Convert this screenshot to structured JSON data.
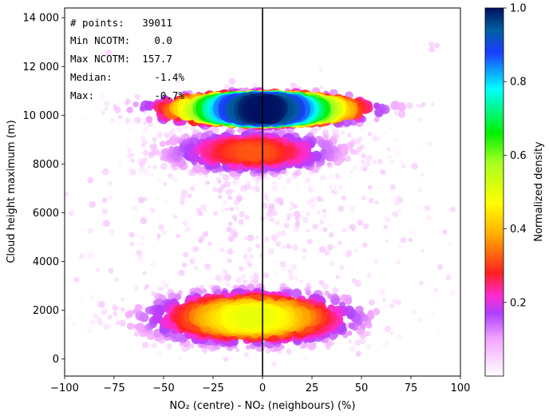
{
  "chart_data": {
    "type": "scatter",
    "style": "density-colored scatter (bubble size and color scale with normalized density)",
    "xlabel": "NO₂ (centre) - NO₂ (neighbours) (%)",
    "ylabel": "Cloud height maximum (m)",
    "xlim": [
      -100,
      100
    ],
    "ylim": [
      -700,
      14400
    ],
    "x_ticks": [
      -100,
      -75,
      -50,
      -25,
      0,
      25,
      50,
      75,
      100
    ],
    "x_tick_labels": [
      "−100",
      "−75",
      "−50",
      "−25",
      "0",
      "25",
      "50",
      "75",
      "100"
    ],
    "y_ticks": [
      0,
      2000,
      4000,
      6000,
      8000,
      10000,
      12000,
      14000
    ],
    "y_tick_labels": [
      "0",
      "2000",
      "4000",
      "6000",
      "8000",
      "10 000",
      "12 000",
      "14 000"
    ],
    "grid": false,
    "reference_line": {
      "x": 0,
      "color": "#000000"
    },
    "colorbar": {
      "label": "Normalized density",
      "range": [
        0,
        1.0
      ],
      "ticks": [
        0.2,
        0.4,
        0.6,
        0.8,
        1.0
      ],
      "tick_labels": [
        "0.2",
        "0.4",
        "0.6",
        "0.8",
        "1.0"
      ],
      "colormap": "gist_ncar-like",
      "colormap_stops": [
        {
          "v": 0.0,
          "c": "#ffffff"
        },
        {
          "v": 0.1,
          "c": "#f3a6ff"
        },
        {
          "v": 0.17,
          "c": "#b040ff"
        },
        {
          "v": 0.22,
          "c": "#ff2bd0"
        },
        {
          "v": 0.28,
          "c": "#ff2020"
        },
        {
          "v": 0.38,
          "c": "#ffa800"
        },
        {
          "v": 0.47,
          "c": "#ffff00"
        },
        {
          "v": 0.58,
          "c": "#a8ff20"
        },
        {
          "v": 0.66,
          "c": "#00f000"
        },
        {
          "v": 0.78,
          "c": "#00ffff"
        },
        {
          "v": 0.88,
          "c": "#1a3cff"
        },
        {
          "v": 0.94,
          "c": "#0060a0"
        },
        {
          "v": 1.0,
          "c": "#001060"
        }
      ]
    },
    "clusters": [
      {
        "x_center": -5,
        "x_spread": 32,
        "y_center": 1700,
        "y_spread": 650,
        "peak_density": 0.5
      },
      {
        "x_center": -5,
        "x_spread": 28,
        "y_center": 8500,
        "y_spread": 550,
        "peak_density": 0.32
      },
      {
        "x_center": 0,
        "x_spread": 30,
        "y_center": 10250,
        "y_spread": 350,
        "peak_density": 1.0
      },
      {
        "x_center": 0,
        "x_spread": 45,
        "y_center": 6000,
        "y_spread": 2500,
        "peak_density": 0.06
      }
    ]
  },
  "stats_box": {
    "lines": [
      "# points:   39011",
      "Min NCOTM:    0.0",
      "Max NCOTM:  157.7",
      "Median:       -1.4%",
      "Max:          -0.7%"
    ]
  }
}
